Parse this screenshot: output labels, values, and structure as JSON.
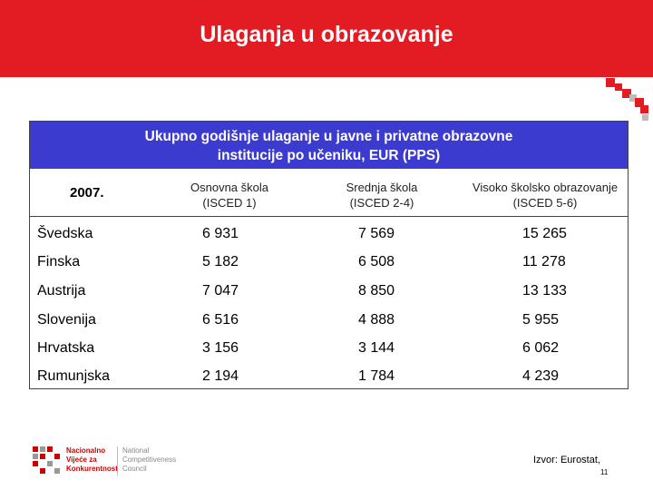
{
  "slide": {
    "title": "Ulaganja u obrazovanje"
  },
  "table": {
    "banner_line1": "Ukupno godišnje ulaganje u javne i privatne obrazovne",
    "banner_line2": "institucije po učeniku, EUR (PPS)",
    "year": "2007.",
    "columns": [
      {
        "line1": "Osnovna škola",
        "line2": "(ISCED 1)"
      },
      {
        "line1": "Srednja škola",
        "line2": "(ISCED 2-4)"
      },
      {
        "line1": "Visoko školsko obrazovanje",
        "line2": "(ISCED 5-6)"
      }
    ],
    "rows": [
      {
        "country": "Švedska",
        "v1": "6 931",
        "v2": "7 569",
        "v3": "15 265"
      },
      {
        "country": "Finska",
        "v1": "5 182",
        "v2": "6 508",
        "v3": "11 278"
      },
      {
        "country": "Austrija",
        "v1": "7 047",
        "v2": "8 850",
        "v3": "13 133"
      },
      {
        "country": "Slovenija",
        "v1": "6 516",
        "v2": "4 888",
        "v3": "5 955"
      },
      {
        "country": "Hrvatska",
        "v1": "3 156",
        "v2": "3 144",
        "v3": "6 062"
      },
      {
        "country": "Rumunjska",
        "v1": "2 194",
        "v2": "1 784",
        "v3": "4 239"
      }
    ]
  },
  "logo": {
    "hr_line1": "Nacionalno",
    "hr_line2": "Vijeće za",
    "hr_line3": "Konkurentnost",
    "en_line1": "National",
    "en_line2": "Competitiveness",
    "en_line3": "Council"
  },
  "footer": {
    "source": "Izvor: Eurostat,",
    "page": "11"
  },
  "colors": {
    "header_red": "#e31b23",
    "banner_blue": "#3b3bcf"
  }
}
